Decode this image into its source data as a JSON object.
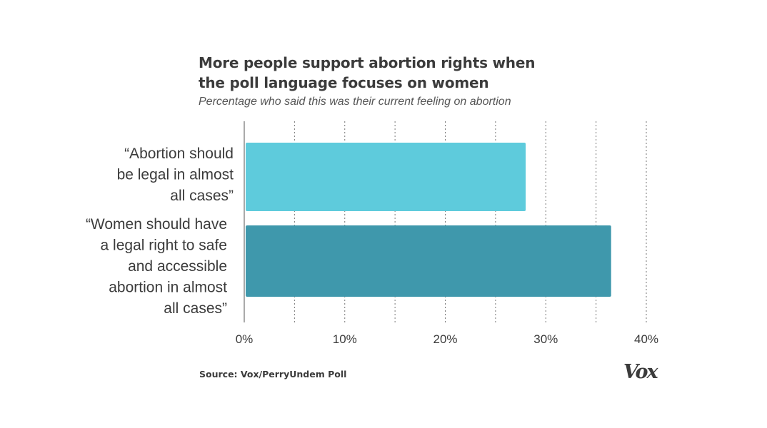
{
  "title_lines": [
    "More people support abortion rights when",
    "the poll language focuses on women"
  ],
  "subtitle": "Percentage who said this was their current feeling on abortion",
  "source": "Source: Vox/PerryUndem Poll",
  "logo_text": "Vox",
  "chart_data": {
    "type": "bar",
    "orientation": "horizontal",
    "title": "More people support abortion rights when the poll language focuses on women",
    "subtitle": "Percentage who said this was their current feeling on abortion",
    "categories": [
      [
        "“Abortion should",
        "be legal in almost",
        "all cases”"
      ],
      [
        "“Women should have",
        "a legal right to safe",
        "and accessible",
        "abortion in almost",
        "all cases”"
      ]
    ],
    "values": [
      28,
      36.5
    ],
    "colors": [
      "#5ecbdc",
      "#3f98ac"
    ],
    "xlim": [
      0,
      40
    ],
    "ticks": [
      0,
      10,
      20,
      30,
      40
    ],
    "tick_labels": [
      "0%",
      "10%",
      "20%",
      "30%",
      "40%"
    ],
    "gridlines": [
      5,
      10,
      15,
      20,
      25,
      30,
      35,
      40
    ],
    "grid": "dotted vertical",
    "xlabel": "",
    "ylabel": ""
  }
}
